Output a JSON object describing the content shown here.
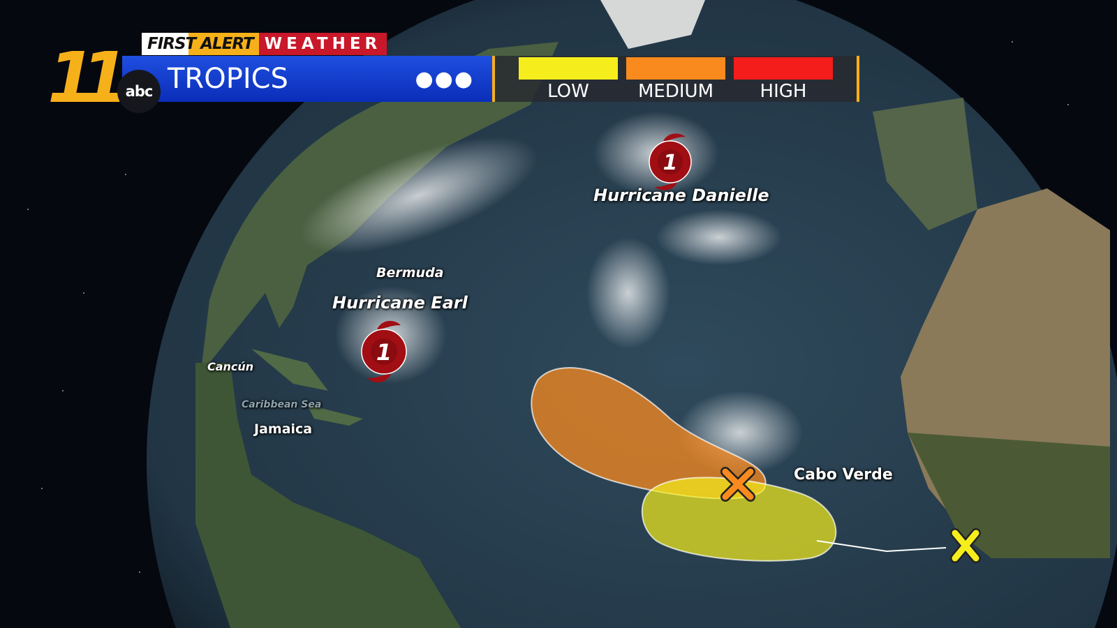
{
  "header": {
    "station_number": "11",
    "network": "abc",
    "brand_first_alert": "FIRST ALERT",
    "brand_weather": "WEATHER",
    "title": "TROPICS",
    "more_icon": "ellipsis-icon"
  },
  "legend": {
    "items": [
      {
        "label": "LOW",
        "color": "#f5ee1c"
      },
      {
        "label": "MEDIUM",
        "color": "#f98a1e"
      },
      {
        "label": "HIGH",
        "color": "#f41d1c"
      }
    ]
  },
  "storms": [
    {
      "name": "Hurricane Danielle",
      "category": "1"
    },
    {
      "name": "Hurricane Earl",
      "category": "1"
    }
  ],
  "places": [
    "Bermuda",
    "Cancún",
    "Jamaica",
    "Caribbean Sea",
    "Cabo Verde"
  ],
  "outlook_areas": [
    {
      "risk": "MEDIUM",
      "color": "#f98a1e"
    },
    {
      "risk": "LOW",
      "color": "#f5ee1c"
    }
  ]
}
